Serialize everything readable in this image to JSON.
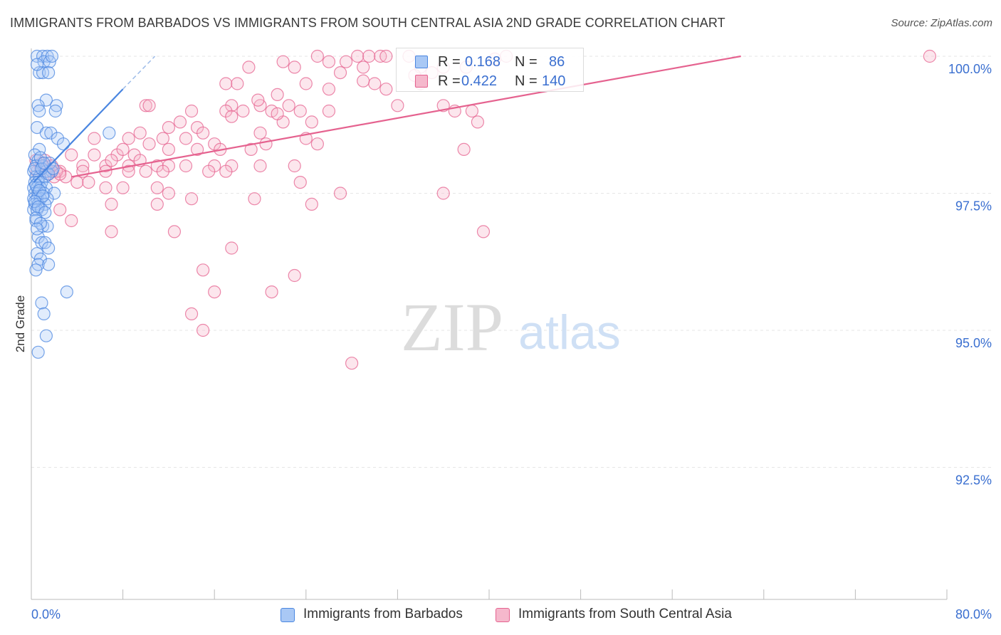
{
  "header": {
    "title": "IMMIGRANTS FROM BARBADOS VS IMMIGRANTS FROM SOUTH CENTRAL ASIA 2ND GRADE CORRELATION CHART",
    "source": "Source: ZipAtlas.com"
  },
  "watermark": {
    "zip": "ZIP",
    "atlas": "atlas"
  },
  "colors": {
    "blue": "#4a86e0",
    "blue_fill": "#a9c8f5",
    "pink": "#e5628f",
    "pink_fill": "#f5b8cc",
    "accent_text": "#3a6fd0",
    "grid": "#e6e6e6"
  },
  "stats_legend": [
    {
      "r_label": "R =",
      "r_value": "0.168",
      "n_label": "N =",
      "n_value": "86"
    },
    {
      "r_label": "R =",
      "r_value": "0.422",
      "n_label": "N =",
      "n_value": "140"
    }
  ],
  "chart_data": {
    "type": "scatter",
    "title": "IMMIGRANTS FROM BARBADOS VS IMMIGRANTS FROM SOUTH CENTRAL ASIA 2ND GRADE CORRELATION CHART",
    "xlabel": "",
    "ylabel": "2nd Grade",
    "xlim": [
      0,
      80
    ],
    "ylim": [
      91.0,
      100.4
    ],
    "x_tick_labels": [
      "0.0%",
      "80.0%"
    ],
    "y_ticks": [
      92.5,
      95.0,
      97.5,
      100.0
    ],
    "y_tick_labels": [
      "92.5%",
      "95.0%",
      "97.5%",
      "100.0%"
    ],
    "grid": "horizontal dashed",
    "legend_position": "bottom",
    "series": [
      {
        "name": "Immigrants from Barbados",
        "color": "blue",
        "R": 0.168,
        "N": 86,
        "trend": {
          "x": [
            0.2,
            8.0
          ],
          "y": [
            97.7,
            99.4
          ],
          "dashed_to": [
            10.8,
            100.0
          ]
        },
        "points": [
          [
            0.5,
            100.0
          ],
          [
            1.0,
            100.0
          ],
          [
            1.4,
            100.0
          ],
          [
            1.1,
            99.9
          ],
          [
            1.6,
            99.9
          ],
          [
            0.7,
            99.7
          ],
          [
            1.0,
            99.7
          ],
          [
            1.5,
            99.7
          ],
          [
            1.3,
            99.2
          ],
          [
            0.6,
            99.1
          ],
          [
            2.2,
            99.1
          ],
          [
            0.7,
            99.0
          ],
          [
            2.1,
            99.0
          ],
          [
            0.5,
            98.7
          ],
          [
            1.3,
            98.6
          ],
          [
            1.7,
            98.6
          ],
          [
            2.3,
            98.5
          ],
          [
            2.8,
            98.4
          ],
          [
            6.8,
            98.6
          ],
          [
            0.7,
            98.3
          ],
          [
            0.3,
            98.2
          ],
          [
            0.6,
            98.1
          ],
          [
            0.4,
            98.0
          ],
          [
            1.0,
            98.0
          ],
          [
            1.3,
            97.9
          ],
          [
            1.8,
            97.9
          ],
          [
            0.2,
            97.9
          ],
          [
            0.4,
            97.8
          ],
          [
            0.7,
            97.8
          ],
          [
            1.2,
            97.8
          ],
          [
            0.3,
            97.7
          ],
          [
            0.6,
            97.7
          ],
          [
            0.9,
            97.7
          ],
          [
            0.2,
            97.6
          ],
          [
            0.5,
            97.6
          ],
          [
            0.8,
            97.6
          ],
          [
            1.3,
            97.6
          ],
          [
            0.3,
            97.5
          ],
          [
            0.6,
            97.5
          ],
          [
            1.1,
            97.5
          ],
          [
            2.0,
            97.5
          ],
          [
            0.2,
            97.4
          ],
          [
            0.5,
            97.4
          ],
          [
            0.8,
            97.4
          ],
          [
            1.4,
            97.4
          ],
          [
            0.3,
            97.3
          ],
          [
            0.6,
            97.3
          ],
          [
            1.2,
            97.3
          ],
          [
            0.2,
            97.2
          ],
          [
            0.5,
            97.2
          ],
          [
            0.9,
            97.2
          ],
          [
            0.4,
            97.0
          ],
          [
            1.0,
            96.9
          ],
          [
            1.4,
            96.9
          ],
          [
            0.6,
            96.7
          ],
          [
            0.9,
            96.6
          ],
          [
            1.2,
            96.6
          ],
          [
            1.5,
            96.5
          ],
          [
            0.5,
            96.4
          ],
          [
            0.8,
            96.3
          ],
          [
            0.6,
            96.2
          ],
          [
            1.5,
            96.2
          ],
          [
            0.4,
            96.1
          ],
          [
            3.1,
            95.7
          ],
          [
            0.9,
            95.5
          ],
          [
            1.1,
            95.3
          ],
          [
            1.3,
            94.9
          ],
          [
            0.6,
            94.6
          ],
          [
            0.3,
            97.95
          ],
          [
            0.9,
            97.95
          ],
          [
            1.5,
            97.85
          ],
          [
            0.4,
            97.65
          ],
          [
            0.7,
            97.55
          ],
          [
            1.0,
            97.45
          ],
          [
            0.3,
            97.35
          ],
          [
            0.6,
            97.25
          ],
          [
            1.2,
            97.15
          ],
          [
            0.4,
            97.05
          ],
          [
            0.8,
            96.95
          ],
          [
            0.5,
            96.85
          ],
          [
            1.6,
            98.05
          ],
          [
            1.9,
            97.95
          ],
          [
            0.8,
            98.15
          ],
          [
            1.1,
            98.05
          ],
          [
            0.5,
            99.85
          ],
          [
            1.8,
            100.0
          ]
        ]
      },
      {
        "name": "Immigrants from South Central Asia",
        "color": "pink",
        "R": 0.422,
        "N": 140,
        "trend": {
          "x": [
            3.5,
            62.0
          ],
          "y": [
            97.8,
            100.0
          ]
        },
        "points": [
          [
            25,
            100.0
          ],
          [
            28.5,
            100.0
          ],
          [
            29.5,
            100.0
          ],
          [
            30.5,
            100.0
          ],
          [
            31,
            100.0
          ],
          [
            33,
            100.0
          ],
          [
            41.5,
            100.0
          ],
          [
            78.5,
            100.0
          ],
          [
            22,
            99.9
          ],
          [
            19,
            99.8
          ],
          [
            23,
            99.8
          ],
          [
            26,
            99.9
          ],
          [
            27.5,
            99.9
          ],
          [
            29,
            99.8
          ],
          [
            34,
            99.8
          ],
          [
            36,
            99.8
          ],
          [
            38,
            99.8
          ],
          [
            27,
            99.7
          ],
          [
            24,
            99.5
          ],
          [
            30,
            99.5
          ],
          [
            34,
            99.5
          ],
          [
            17,
            99.5
          ],
          [
            18,
            99.5
          ],
          [
            26,
            99.4
          ],
          [
            31,
            99.4
          ],
          [
            21.5,
            99.3
          ],
          [
            10,
            99.1
          ],
          [
            10.3,
            99.1
          ],
          [
            17.5,
            99.1
          ],
          [
            20,
            99.1
          ],
          [
            22.5,
            99.1
          ],
          [
            32,
            99.1
          ],
          [
            36,
            99.1
          ],
          [
            14,
            99.0
          ],
          [
            17,
            99.0
          ],
          [
            18.5,
            99.0
          ],
          [
            21,
            99.0
          ],
          [
            23.5,
            99.0
          ],
          [
            26,
            99.0
          ],
          [
            37,
            99.0
          ],
          [
            38.5,
            99.0
          ],
          [
            13,
            98.8
          ],
          [
            17.5,
            98.9
          ],
          [
            22,
            98.8
          ],
          [
            24.5,
            98.8
          ],
          [
            12,
            98.7
          ],
          [
            14.5,
            98.7
          ],
          [
            20,
            98.6
          ],
          [
            39,
            98.8
          ],
          [
            5.5,
            98.5
          ],
          [
            8.5,
            98.5
          ],
          [
            9.5,
            98.6
          ],
          [
            11.5,
            98.5
          ],
          [
            13.5,
            98.5
          ],
          [
            15,
            98.6
          ],
          [
            16,
            98.4
          ],
          [
            20.5,
            98.4
          ],
          [
            24,
            98.5
          ],
          [
            25,
            98.4
          ],
          [
            10.3,
            98.4
          ],
          [
            16.5,
            98.3
          ],
          [
            37.8,
            98.3
          ],
          [
            3.5,
            98.2
          ],
          [
            5.5,
            98.2
          ],
          [
            7.5,
            98.2
          ],
          [
            8,
            98.3
          ],
          [
            9,
            98.2
          ],
          [
            12,
            98.3
          ],
          [
            14.5,
            98.3
          ],
          [
            19.2,
            98.3
          ],
          [
            4.5,
            98.0
          ],
          [
            6.5,
            98.0
          ],
          [
            7,
            98.1
          ],
          [
            8.5,
            98.0
          ],
          [
            9.5,
            98.1
          ],
          [
            11,
            98.0
          ],
          [
            12,
            98.0
          ],
          [
            13.5,
            98.0
          ],
          [
            16,
            98.0
          ],
          [
            17.5,
            98.0
          ],
          [
            20,
            98.0
          ],
          [
            23,
            98.0
          ],
          [
            1.5,
            97.9
          ],
          [
            2.5,
            97.9
          ],
          [
            3,
            97.8
          ],
          [
            4.5,
            97.9
          ],
          [
            6.5,
            97.9
          ],
          [
            8.5,
            97.9
          ],
          [
            10,
            97.9
          ],
          [
            11.5,
            97.9
          ],
          [
            15.5,
            97.9
          ],
          [
            17,
            97.9
          ],
          [
            2,
            97.8
          ],
          [
            4,
            97.7
          ],
          [
            5,
            97.7
          ],
          [
            6.5,
            97.6
          ],
          [
            8,
            97.6
          ],
          [
            11,
            97.6
          ],
          [
            23.5,
            97.7
          ],
          [
            27,
            97.5
          ],
          [
            12,
            97.5
          ],
          [
            19.5,
            97.4
          ],
          [
            7,
            97.3
          ],
          [
            11,
            97.3
          ],
          [
            14,
            97.4
          ],
          [
            24.5,
            97.3
          ],
          [
            36,
            97.5
          ],
          [
            2.5,
            97.2
          ],
          [
            3.5,
            97.0
          ],
          [
            7,
            96.8
          ],
          [
            12.5,
            96.8
          ],
          [
            39.5,
            96.8
          ],
          [
            17.5,
            96.5
          ],
          [
            15,
            96.1
          ],
          [
            23,
            96.0
          ],
          [
            16,
            95.7
          ],
          [
            21,
            95.7
          ],
          [
            14,
            95.3
          ],
          [
            15,
            95.0
          ],
          [
            28,
            94.4
          ],
          [
            1.2,
            98.1
          ],
          [
            1.8,
            98.0
          ],
          [
            0.8,
            97.95
          ],
          [
            1.5,
            97.85
          ],
          [
            2.2,
            97.9
          ],
          [
            0.9,
            98.05
          ],
          [
            0.5,
            97.9
          ],
          [
            1,
            98.0
          ],
          [
            0.4,
            98.1
          ],
          [
            2.5,
            97.85
          ],
          [
            40.5,
            99.95
          ],
          [
            19.8,
            99.2
          ],
          [
            21.5,
            98.95
          ],
          [
            35,
            99.7
          ],
          [
            29,
            99.55
          ],
          [
            33.5,
            99.65
          ]
        ]
      }
    ]
  },
  "bottom_legend": [
    {
      "label": "Immigrants from Barbados"
    },
    {
      "label": "Immigrants from South Central Asia"
    }
  ]
}
